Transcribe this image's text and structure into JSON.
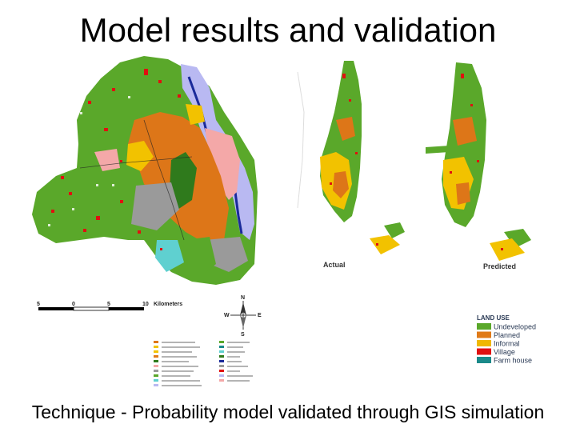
{
  "title": "Model results and validation",
  "caption": "Technique - Probability model validated through GIS simulation",
  "maps": {
    "actual_label": "Actual",
    "predicted_label": "Predicted"
  },
  "scale_bar": {
    "ticks": [
      "5",
      "0",
      "5",
      "10"
    ],
    "unit": "Kilometers"
  },
  "compass": {
    "n": "N",
    "s": "S",
    "e": "E",
    "w": "W"
  },
  "legend": {
    "title": "LAND USE",
    "items": [
      {
        "label": "Undeveloped",
        "color": "#5aa82a"
      },
      {
        "label": "Planned",
        "color": "#e07a18"
      },
      {
        "label": "Informal",
        "color": "#f0b800"
      },
      {
        "label": "Village",
        "color": "#e01010"
      },
      {
        "label": "Farm house",
        "color": "#1a8a8a"
      }
    ]
  },
  "colors": {
    "green": "#5aa82a",
    "dark_green": "#2f7a1c",
    "orange": "#dd7618",
    "yellow": "#f2c200",
    "red": "#e01010",
    "river_blue": "#b9b9f2",
    "river_dark": "#1a2a9a",
    "pink": "#f4a8a8",
    "gray": "#9a9a9a",
    "cyan": "#5fd0d0"
  }
}
